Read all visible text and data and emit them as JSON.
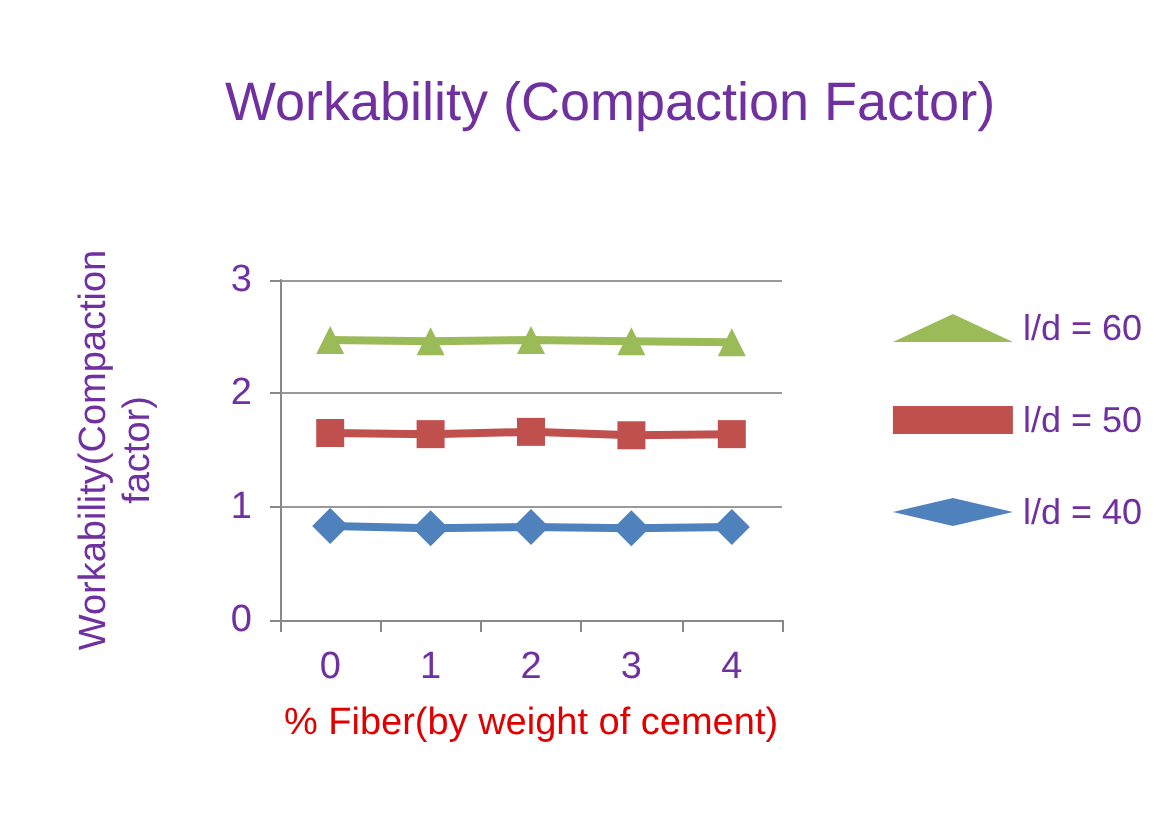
{
  "chart_data": {
    "type": "line",
    "title": "Workability (Compaction Factor)",
    "xlabel": "% Fiber(by weight of cement)",
    "ylabel": "Workability(Compaction factor)",
    "categories": [
      "0",
      "1",
      "2",
      "3",
      "4"
    ],
    "series": [
      {
        "name": "l/d = 60",
        "color": "#9bbb59",
        "marker": "triangle",
        "values": [
          2.47,
          2.46,
          2.47,
          2.46,
          2.45
        ]
      },
      {
        "name": "l/d = 50",
        "color": "#c0504d",
        "marker": "square",
        "values": [
          1.65,
          1.64,
          1.66,
          1.63,
          1.64
        ]
      },
      {
        "name": "l/d = 40",
        "color": "#4f81bd",
        "marker": "diamond",
        "values": [
          0.83,
          0.81,
          0.82,
          0.81,
          0.82
        ]
      }
    ],
    "ylim": [
      0,
      3
    ],
    "yticks": [
      0,
      1,
      2,
      3
    ],
    "grid": "y",
    "legend": "right"
  }
}
